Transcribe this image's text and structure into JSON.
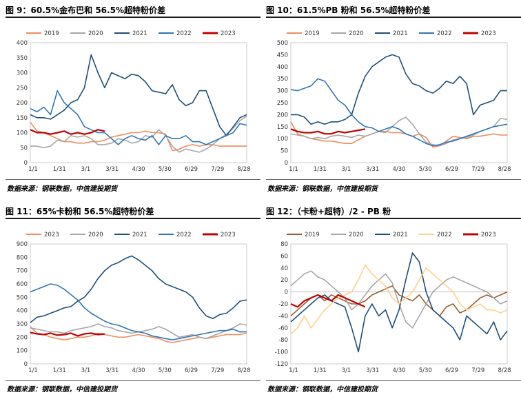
{
  "panels": [
    {
      "title": "图 9：60.5%金布巴和 56.5%超特粉价差",
      "source": "数据来源：钢联数据，中信建投期货"
    },
    {
      "title": "图 10：61.5%PB 粉和 56.5%超特粉价差",
      "source": "数据来源：钢联数据，中信建投期货"
    },
    {
      "title": "图 11：65%卡粉和 56.5%超特粉价差",
      "source": "数据来源：钢联数据，中信建投期货"
    },
    {
      "title": "图 12：（卡粉+超特）/2 - PB 粉",
      "source": "数据来源：钢联数据，中信建投期货"
    }
  ],
  "chart_data": [
    {
      "type": "line",
      "ylim": [
        0,
        400
      ],
      "yticks": [
        "0",
        "50",
        "100",
        "150",
        "200",
        "250",
        "300",
        "350",
        "400"
      ],
      "xticks": [
        "1/1",
        "1/31",
        "3/1",
        "3/31",
        "4/30",
        "5/30",
        "6/29",
        "7/29",
        "8/28"
      ],
      "series": [
        {
          "name": "2019",
          "color": "#F08A5D",
          "values": [
            135,
            105,
            100,
            90,
            80,
            70,
            70,
            65,
            65,
            70,
            70,
            75,
            85,
            90,
            95,
            100,
            100,
            105,
            100,
            100,
            95,
            40,
            45,
            55,
            60,
            55,
            60,
            60,
            55,
            55,
            55,
            55,
            55
          ]
        },
        {
          "name": "2020",
          "color": "#A6A6A6",
          "values": [
            55,
            55,
            50,
            55,
            75,
            70,
            90,
            85,
            90,
            80,
            60,
            60,
            65,
            80,
            75,
            65,
            70,
            90,
            85,
            110,
            90,
            55,
            35,
            45,
            40,
            35,
            45,
            60,
            80,
            95,
            115,
            140,
            155
          ]
        },
        {
          "name": "2021",
          "color": "#1F4E79",
          "values": [
            160,
            150,
            150,
            145,
            160,
            175,
            200,
            210,
            250,
            360,
            300,
            250,
            300,
            290,
            280,
            295,
            290,
            270,
            240,
            235,
            230,
            260,
            210,
            190,
            200,
            240,
            240,
            180,
            120,
            90,
            120,
            150,
            160
          ]
        },
        {
          "name": "2022",
          "color": "#2E75B6",
          "values": [
            180,
            170,
            185,
            160,
            240,
            200,
            180,
            160,
            120,
            110,
            100,
            100,
            80,
            60,
            80,
            90,
            80,
            75,
            90,
            60,
            90,
            80,
            80,
            90,
            70,
            70,
            60,
            70,
            80,
            90,
            100,
            130,
            125
          ]
        },
        {
          "name": "2023",
          "color": "#C00000",
          "values": [
            110,
            100,
            100,
            95,
            100,
            105,
            95,
            100,
            95,
            100,
            110,
            105
          ]
        }
      ]
    },
    {
      "type": "line",
      "ylim": [
        0,
        500
      ],
      "yticks": [
        "0",
        "50",
        "100",
        "150",
        "200",
        "250",
        "300",
        "350",
        "400",
        "450",
        "500"
      ],
      "xticks": [
        "1/1",
        "1/31",
        "3/1",
        "3/31",
        "4/30",
        "5/30",
        "6/29",
        "7/29",
        "8/28"
      ],
      "series": [
        {
          "name": "2019",
          "color": "#F08A5D",
          "values": [
            170,
            120,
            110,
            100,
            95,
            90,
            90,
            85,
            80,
            80,
            95,
            110,
            120,
            130,
            130,
            125,
            125,
            120,
            110,
            120,
            105,
            65,
            70,
            90,
            110,
            105,
            100,
            110,
            110,
            115,
            120,
            115,
            115
          ]
        },
        {
          "name": "2020",
          "color": "#A6A6A6",
          "values": [
            120,
            115,
            110,
            100,
            105,
            100,
            110,
            115,
            110,
            105,
            115,
            110,
            120,
            130,
            125,
            150,
            175,
            190,
            160,
            120,
            85,
            75,
            70,
            80,
            95,
            100,
            105,
            115,
            130,
            140,
            150,
            185,
            180
          ]
        },
        {
          "name": "2021",
          "color": "#1F4E79",
          "values": [
            200,
            200,
            190,
            160,
            170,
            160,
            170,
            170,
            180,
            200,
            290,
            360,
            400,
            420,
            440,
            450,
            440,
            370,
            330,
            320,
            300,
            290,
            310,
            340,
            330,
            360,
            330,
            200,
            240,
            250,
            260,
            300,
            300
          ]
        },
        {
          "name": "2022",
          "color": "#2E75B6",
          "values": [
            305,
            300,
            310,
            320,
            350,
            340,
            300,
            260,
            240,
            200,
            170,
            150,
            145,
            130,
            140,
            150,
            140,
            120,
            110,
            95,
            80,
            70,
            75,
            85,
            90,
            100,
            110,
            120,
            130,
            140,
            150,
            155,
            160
          ]
        },
        {
          "name": "2023",
          "color": "#C00000",
          "values": [
            140,
            130,
            125,
            125,
            130,
            120,
            120,
            130,
            125,
            130,
            135,
            140
          ]
        }
      ]
    },
    {
      "type": "line",
      "ylim": [
        0,
        900
      ],
      "yticks": [
        "0",
        "100",
        "200",
        "300",
        "400",
        "500",
        "600",
        "700",
        "800",
        "900"
      ],
      "xticks": [
        "1/1",
        "1/31",
        "3/1",
        "3/31",
        "4/30",
        "5/30",
        "6/29",
        "7/29",
        "8/28"
      ],
      "series": [
        {
          "name": "2023",
          "color": "#F08A5D",
          "values": [
            280,
            230,
            220,
            200,
            190,
            180,
            190,
            200,
            200,
            210,
            230,
            220,
            210,
            200,
            200,
            210,
            220,
            210,
            200,
            190,
            170,
            160,
            170,
            180,
            190,
            200,
            190,
            200,
            210,
            220,
            220,
            220,
            230
          ]
        },
        {
          "name": "2020",
          "color": "#A6A6A6",
          "values": [
            270,
            260,
            250,
            240,
            240,
            230,
            250,
            260,
            270,
            280,
            300,
            280,
            270,
            250,
            240,
            230,
            240,
            250,
            260,
            280,
            260,
            230,
            200,
            210,
            220,
            200,
            190,
            210,
            230,
            250,
            270,
            300,
            290
          ]
        },
        {
          "name": "2021",
          "color": "#1F4E79",
          "values": [
            310,
            350,
            360,
            380,
            400,
            420,
            430,
            470,
            500,
            560,
            640,
            700,
            740,
            760,
            790,
            810,
            780,
            740,
            700,
            640,
            600,
            580,
            560,
            540,
            500,
            420,
            360,
            340,
            370,
            380,
            420,
            470,
            480
          ]
        },
        {
          "name": "2022",
          "color": "#2E75B6",
          "values": [
            540,
            560,
            580,
            600,
            590,
            560,
            520,
            480,
            420,
            380,
            350,
            320,
            300,
            290,
            270,
            250,
            240,
            230,
            210,
            200,
            190,
            180,
            190,
            200,
            210,
            220,
            230,
            240,
            250,
            250,
            260,
            240,
            240
          ]
        },
        {
          "name": "2023",
          "color": "#C00000",
          "values": [
            235,
            225,
            220,
            230,
            215,
            220,
            230,
            210,
            225,
            230,
            220,
            225
          ]
        }
      ]
    },
    {
      "type": "line",
      "ylim": [
        -120,
        80
      ],
      "yticks": [
        "-120",
        "-100",
        "-80",
        "-60",
        "-40",
        "-20",
        "0",
        "20",
        "40",
        "60",
        "80"
      ],
      "xticks": [
        "1/1",
        "1/31",
        "3/1",
        "3/31",
        "4/30",
        "5/30",
        "6/29",
        "7/29",
        "8/28"
      ],
      "series": [
        {
          "name": "2019",
          "color": "#9C5B2E",
          "values": [
            -40,
            -30,
            -20,
            -10,
            -5,
            -15,
            -5,
            -10,
            -15,
            -20,
            -20,
            -15,
            -5,
            0,
            5,
            10,
            -5,
            -10,
            -15,
            -5,
            -20,
            -30,
            -40,
            -25,
            -20,
            -35,
            -30,
            -20,
            -10,
            -5,
            -10,
            -5,
            0
          ]
        },
        {
          "name": "2020",
          "color": "#A6A6A6",
          "values": [
            10,
            20,
            30,
            35,
            25,
            20,
            10,
            0,
            -10,
            -30,
            -20,
            -5,
            10,
            20,
            30,
            15,
            -20,
            -50,
            -60,
            -40,
            -20,
            0,
            10,
            20,
            25,
            20,
            15,
            10,
            5,
            0,
            -10,
            -20,
            -15
          ]
        },
        {
          "name": "2021",
          "color": "#1F4E79",
          "values": [
            -50,
            -40,
            -30,
            -20,
            -10,
            -5,
            -15,
            -20,
            -25,
            -60,
            -100,
            -40,
            -20,
            -40,
            -30,
            -60,
            -30,
            20,
            65,
            50,
            0,
            -30,
            -40,
            -50,
            -60,
            -80,
            -40,
            -50,
            -60,
            -70,
            -50,
            -80,
            -65
          ]
        },
        {
          "name": "2022",
          "color": "#FFD08A",
          "values": [
            -70,
            -60,
            -40,
            -60,
            -45,
            -30,
            -20,
            -10,
            -5,
            0,
            20,
            45,
            30,
            20,
            10,
            -10,
            -20,
            -10,
            0,
            20,
            40,
            30,
            20,
            10,
            0,
            -20,
            -30,
            -25,
            -20,
            -30,
            -30,
            -35,
            -30
          ]
        },
        {
          "name": "2023",
          "color": "#C00000",
          "values": [
            -20,
            -25,
            -15,
            -10,
            -5,
            -10,
            -15,
            -5,
            -10,
            -15,
            -20,
            -25
          ]
        }
      ]
    }
  ]
}
